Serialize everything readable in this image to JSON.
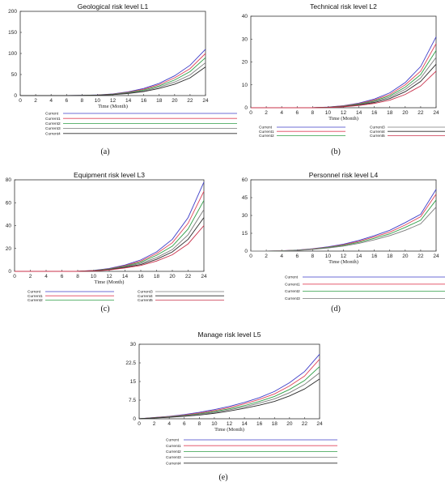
{
  "figure": {
    "captions": [
      "(a)",
      "(b)",
      "(c)",
      "(d)",
      "(e)"
    ]
  },
  "colors": {
    "Current": "#3d3dc8",
    "Current1": "#e0445a",
    "Current2": "#2e9e46",
    "Current3": "#7a7a7a",
    "Current4": "#2a2a2a",
    "Current5": "#c8304a"
  },
  "chart_data": [
    {
      "type": "line",
      "title": "Geological risk level L1",
      "xlabel": "Time (Month)",
      "ylabel": "",
      "xlim": [
        0,
        24
      ],
      "ylim": [
        0,
        200
      ],
      "xticks": [
        "0",
        "2",
        "4",
        "6",
        "8",
        "10",
        "12",
        "14",
        "16",
        "18",
        "20",
        "22",
        "24"
      ],
      "yticks": [
        "0",
        "50",
        "100",
        "150",
        "200"
      ],
      "x": [
        0,
        2,
        4,
        6,
        8,
        10,
        12,
        14,
        16,
        18,
        20,
        22,
        24
      ],
      "legend": [
        "Current",
        "Current1",
        "Current2",
        "Current3",
        "Current4"
      ],
      "series": [
        {
          "name": "Current",
          "values": [
            0,
            0,
            0,
            0,
            0.5,
            1.5,
            4,
            9,
            17,
            29,
            47,
            72,
            110
          ]
        },
        {
          "name": "Current1",
          "values": [
            0,
            0,
            0,
            0,
            0.4,
            1.3,
            3.5,
            8,
            15,
            26,
            42,
            64,
            100
          ]
        },
        {
          "name": "Current2",
          "values": [
            0,
            0,
            0,
            0,
            0.3,
            1.1,
            3,
            7,
            13,
            23,
            37,
            57,
            90
          ]
        },
        {
          "name": "Current3",
          "values": [
            0,
            0,
            0,
            0,
            0.3,
            1,
            2.6,
            6,
            11,
            20,
            32,
            49,
            78
          ]
        },
        {
          "name": "Current4",
          "values": [
            0,
            0,
            0,
            0,
            0.2,
            0.8,
            2.2,
            5,
            9.5,
            17,
            27,
            42,
            68
          ]
        }
      ]
    },
    {
      "type": "line",
      "title": "Technical risk level L2",
      "xlabel": "Time (Month)",
      "ylabel": "",
      "xlim": [
        0,
        24
      ],
      "ylim": [
        0,
        40
      ],
      "xticks": [
        "0",
        "2",
        "4",
        "6",
        "8",
        "10",
        "12",
        "14",
        "16",
        "18",
        "20",
        "22",
        "24"
      ],
      "yticks": [
        "0",
        "10",
        "20",
        "30",
        "40"
      ],
      "x": [
        0,
        2,
        4,
        6,
        8,
        10,
        12,
        14,
        16,
        18,
        20,
        22,
        24
      ],
      "legend": [
        "Current",
        "Current1",
        "Current2",
        "Current3",
        "Current4",
        "Current5"
      ],
      "series": [
        {
          "name": "Current",
          "values": [
            0,
            0,
            0,
            0,
            0,
            0.3,
            0.9,
            2,
            3.8,
            6.5,
            11,
            18,
            31
          ]
        },
        {
          "name": "Current1",
          "values": [
            0,
            0,
            0,
            0,
            0,
            0.25,
            0.8,
            1.8,
            3.4,
            5.8,
            10,
            16,
            28
          ]
        },
        {
          "name": "Current2",
          "values": [
            0,
            0,
            0,
            0,
            0,
            0.2,
            0.7,
            1.6,
            3,
            5.2,
            9,
            14.5,
            25
          ]
        },
        {
          "name": "Current3",
          "values": [
            0,
            0,
            0,
            0,
            0,
            0.2,
            0.6,
            1.4,
            2.7,
            4.6,
            8,
            13,
            22
          ]
        },
        {
          "name": "Current4",
          "values": [
            0,
            0,
            0,
            0,
            0,
            0.15,
            0.5,
            1.2,
            2.3,
            4,
            7,
            11.5,
            19
          ]
        },
        {
          "name": "Current5",
          "values": [
            0,
            0,
            0,
            0,
            0,
            0.1,
            0.4,
            1,
            1.9,
            3.3,
            5.8,
            9.5,
            16
          ]
        }
      ]
    },
    {
      "type": "line",
      "title": "Equipment risk level L3",
      "xlabel": "Time (Month)",
      "ylabel": "",
      "xlim": [
        0,
        24
      ],
      "ylim": [
        0,
        80
      ],
      "xticks": [
        "0",
        "2",
        "4",
        "6",
        "8",
        "10",
        "12",
        "14",
        "16",
        "18",
        "20",
        "22",
        "24"
      ],
      "yticks": [
        "0",
        "20",
        "40",
        "60",
        "80"
      ],
      "x": [
        0,
        2,
        4,
        6,
        8,
        10,
        12,
        14,
        16,
        18,
        20,
        22,
        24
      ],
      "legend": [
        "Current",
        "Current1",
        "Current2",
        "Current3",
        "Current4",
        "Current5"
      ],
      "series": [
        {
          "name": "Current",
          "values": [
            0,
            0,
            0,
            0,
            0,
            0.8,
            2.5,
            5.5,
            10,
            17,
            28,
            47,
            78
          ]
        },
        {
          "name": "Current1",
          "values": [
            0,
            0,
            0,
            0,
            0,
            0.7,
            2.2,
            5,
            9,
            15.5,
            25,
            42,
            70
          ]
        },
        {
          "name": "Current2",
          "values": [
            0,
            0,
            0,
            0,
            0,
            0.6,
            2,
            4.5,
            8,
            14,
            22,
            37,
            62
          ]
        },
        {
          "name": "Current3",
          "values": [
            0,
            0,
            0,
            0,
            0,
            0.5,
            1.7,
            4,
            7,
            12,
            19,
            32,
            54
          ]
        },
        {
          "name": "Current4",
          "values": [
            0,
            0,
            0,
            0,
            0,
            0.4,
            1.5,
            3.5,
            6,
            10.5,
            17,
            28,
            47
          ]
        },
        {
          "name": "Current5",
          "values": [
            0,
            0,
            0,
            0,
            0,
            0.3,
            1.2,
            3,
            5.2,
            9,
            14.5,
            24,
            40
          ]
        }
      ]
    },
    {
      "type": "line",
      "title": "Personnel risk level L4",
      "xlabel": "Time (Month)",
      "ylabel": "",
      "xlim": [
        0,
        24
      ],
      "ylim": [
        0,
        60
      ],
      "xticks": [
        "0",
        "2",
        "4",
        "6",
        "8",
        "10",
        "12",
        "14",
        "16",
        "18",
        "20",
        "22",
        "24"
      ],
      "yticks": [
        "0",
        "15",
        "30",
        "45",
        "60"
      ],
      "x": [
        0,
        2,
        4,
        6,
        8,
        10,
        12,
        14,
        16,
        18,
        20,
        22,
        24
      ],
      "legend": [
        "Current",
        "Current1",
        "Current2",
        "Current3"
      ],
      "series": [
        {
          "name": "Current",
          "values": [
            0,
            0,
            0.3,
            0.9,
            2,
            3.6,
            5.8,
            9,
            13,
            17.5,
            24,
            31,
            52
          ]
        },
        {
          "name": "Current1",
          "values": [
            0,
            0,
            0.3,
            0.8,
            1.8,
            3.3,
            5.3,
            8.2,
            12,
            16,
            22,
            29,
            48
          ]
        },
        {
          "name": "Current2",
          "values": [
            0,
            0,
            0.2,
            0.7,
            1.6,
            3,
            4.8,
            7.4,
            10.8,
            14.5,
            20,
            26,
            43
          ]
        },
        {
          "name": "Current3",
          "values": [
            0,
            0,
            0.2,
            0.6,
            1.4,
            2.6,
            4.2,
            6.5,
            9.5,
            13,
            17.5,
            23,
            37
          ]
        }
      ]
    },
    {
      "type": "line",
      "title": "Manage risk level L5",
      "xlabel": "Time (Month)",
      "ylabel": "",
      "xlim": [
        0,
        24
      ],
      "ylim": [
        0,
        30
      ],
      "xticks": [
        "0",
        "2",
        "4",
        "6",
        "8",
        "10",
        "12",
        "14",
        "16",
        "18",
        "20",
        "22",
        "24"
      ],
      "yticks": [
        "0",
        "7.5",
        "15",
        "22.5",
        "30"
      ],
      "x": [
        0,
        2,
        4,
        6,
        8,
        10,
        12,
        14,
        16,
        18,
        20,
        22,
        24
      ],
      "legend": [
        "Current",
        "Current1",
        "Current2",
        "Current3",
        "Current4"
      ],
      "series": [
        {
          "name": "Current",
          "values": [
            0,
            0.5,
            1,
            1.7,
            2.6,
            3.7,
            5,
            6.6,
            8.5,
            11,
            14.5,
            19,
            26
          ]
        },
        {
          "name": "Current1",
          "values": [
            0,
            0.45,
            0.9,
            1.5,
            2.3,
            3.3,
            4.5,
            6,
            7.8,
            10,
            13.2,
            17.2,
            24
          ]
        },
        {
          "name": "Current2",
          "values": [
            0,
            0.4,
            0.8,
            1.3,
            2,
            2.9,
            4,
            5.3,
            7,
            9,
            11.8,
            15.4,
            21
          ]
        },
        {
          "name": "Current3",
          "values": [
            0,
            0.35,
            0.7,
            1.2,
            1.8,
            2.6,
            3.6,
            4.8,
            6.3,
            8,
            10.5,
            13.8,
            18.5
          ]
        },
        {
          "name": "Current4",
          "values": [
            0,
            0.3,
            0.6,
            1,
            1.5,
            2.2,
            3.1,
            4.2,
            5.5,
            7,
            9.2,
            12,
            16
          ]
        }
      ]
    }
  ]
}
